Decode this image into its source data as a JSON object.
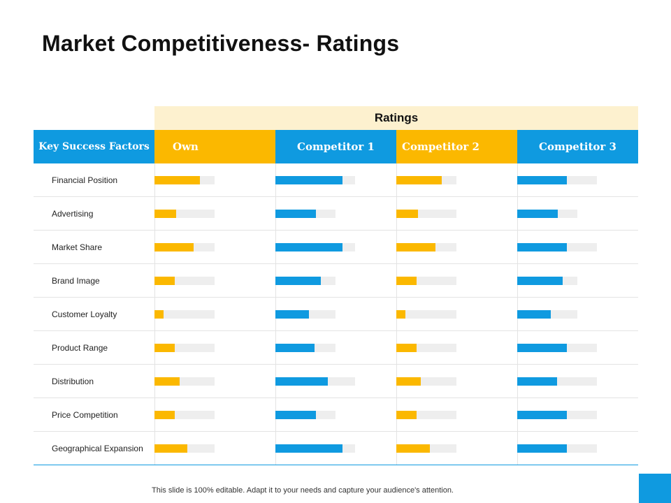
{
  "title": "Market Competitiveness- Ratings",
  "ratings_label": "Ratings",
  "headers": {
    "factors": "Key Success Factors",
    "own": "Own",
    "c1": "Competitor 1",
    "c2": "Competitor 2",
    "c3": "Competitor 3"
  },
  "colors": {
    "own": "#fbb800",
    "competitor1": "#0f9ae0",
    "competitor2": "#fbb800",
    "competitor3": "#0f9ae0",
    "track": "#eeeeee"
  },
  "rows": [
    {
      "factor": "Financial Position",
      "bars": [
        [
          0.75,
          1.0
        ],
        [
          0.84,
          1.33
        ],
        [
          0.75,
          1.0
        ],
        [
          0.62,
          1.33
        ]
      ]
    },
    {
      "factor": "Advertising",
      "bars": [
        [
          0.36,
          1.0
        ],
        [
          0.67,
          1.0
        ],
        [
          0.36,
          1.0
        ],
        [
          0.67,
          1.0
        ]
      ]
    },
    {
      "factor": "Market Share",
      "bars": [
        [
          0.65,
          1.0
        ],
        [
          0.84,
          1.33
        ],
        [
          0.65,
          1.0
        ],
        [
          0.62,
          1.33
        ]
      ]
    },
    {
      "factor": "Brand Image",
      "bars": [
        [
          0.34,
          1.0
        ],
        [
          0.76,
          1.0
        ],
        [
          0.34,
          1.0
        ],
        [
          0.75,
          1.0
        ]
      ]
    },
    {
      "factor": "Customer Loyalty",
      "bars": [
        [
          0.15,
          1.0
        ],
        [
          0.56,
          1.0
        ],
        [
          0.15,
          1.0
        ],
        [
          0.56,
          1.0
        ]
      ]
    },
    {
      "factor": "Product Range",
      "bars": [
        [
          0.34,
          1.0
        ],
        [
          0.65,
          1.0
        ],
        [
          0.34,
          1.0
        ],
        [
          0.62,
          1.33
        ]
      ]
    },
    {
      "factor": "Distribution",
      "bars": [
        [
          0.42,
          1.0
        ],
        [
          0.66,
          1.33
        ],
        [
          0.41,
          1.0
        ],
        [
          0.5,
          1.33
        ]
      ]
    },
    {
      "factor": "Price Competition",
      "bars": [
        [
          0.34,
          1.0
        ],
        [
          0.67,
          1.0
        ],
        [
          0.34,
          1.0
        ],
        [
          0.62,
          1.33
        ]
      ]
    },
    {
      "factor": "Geographical Expansion",
      "bars": [
        [
          0.55,
          1.0
        ],
        [
          0.84,
          1.33
        ],
        [
          0.56,
          1.0
        ],
        [
          0.62,
          1.33
        ]
      ]
    }
  ],
  "footer": "This slide is 100% editable. Adapt it to your needs and capture your audience's attention."
}
